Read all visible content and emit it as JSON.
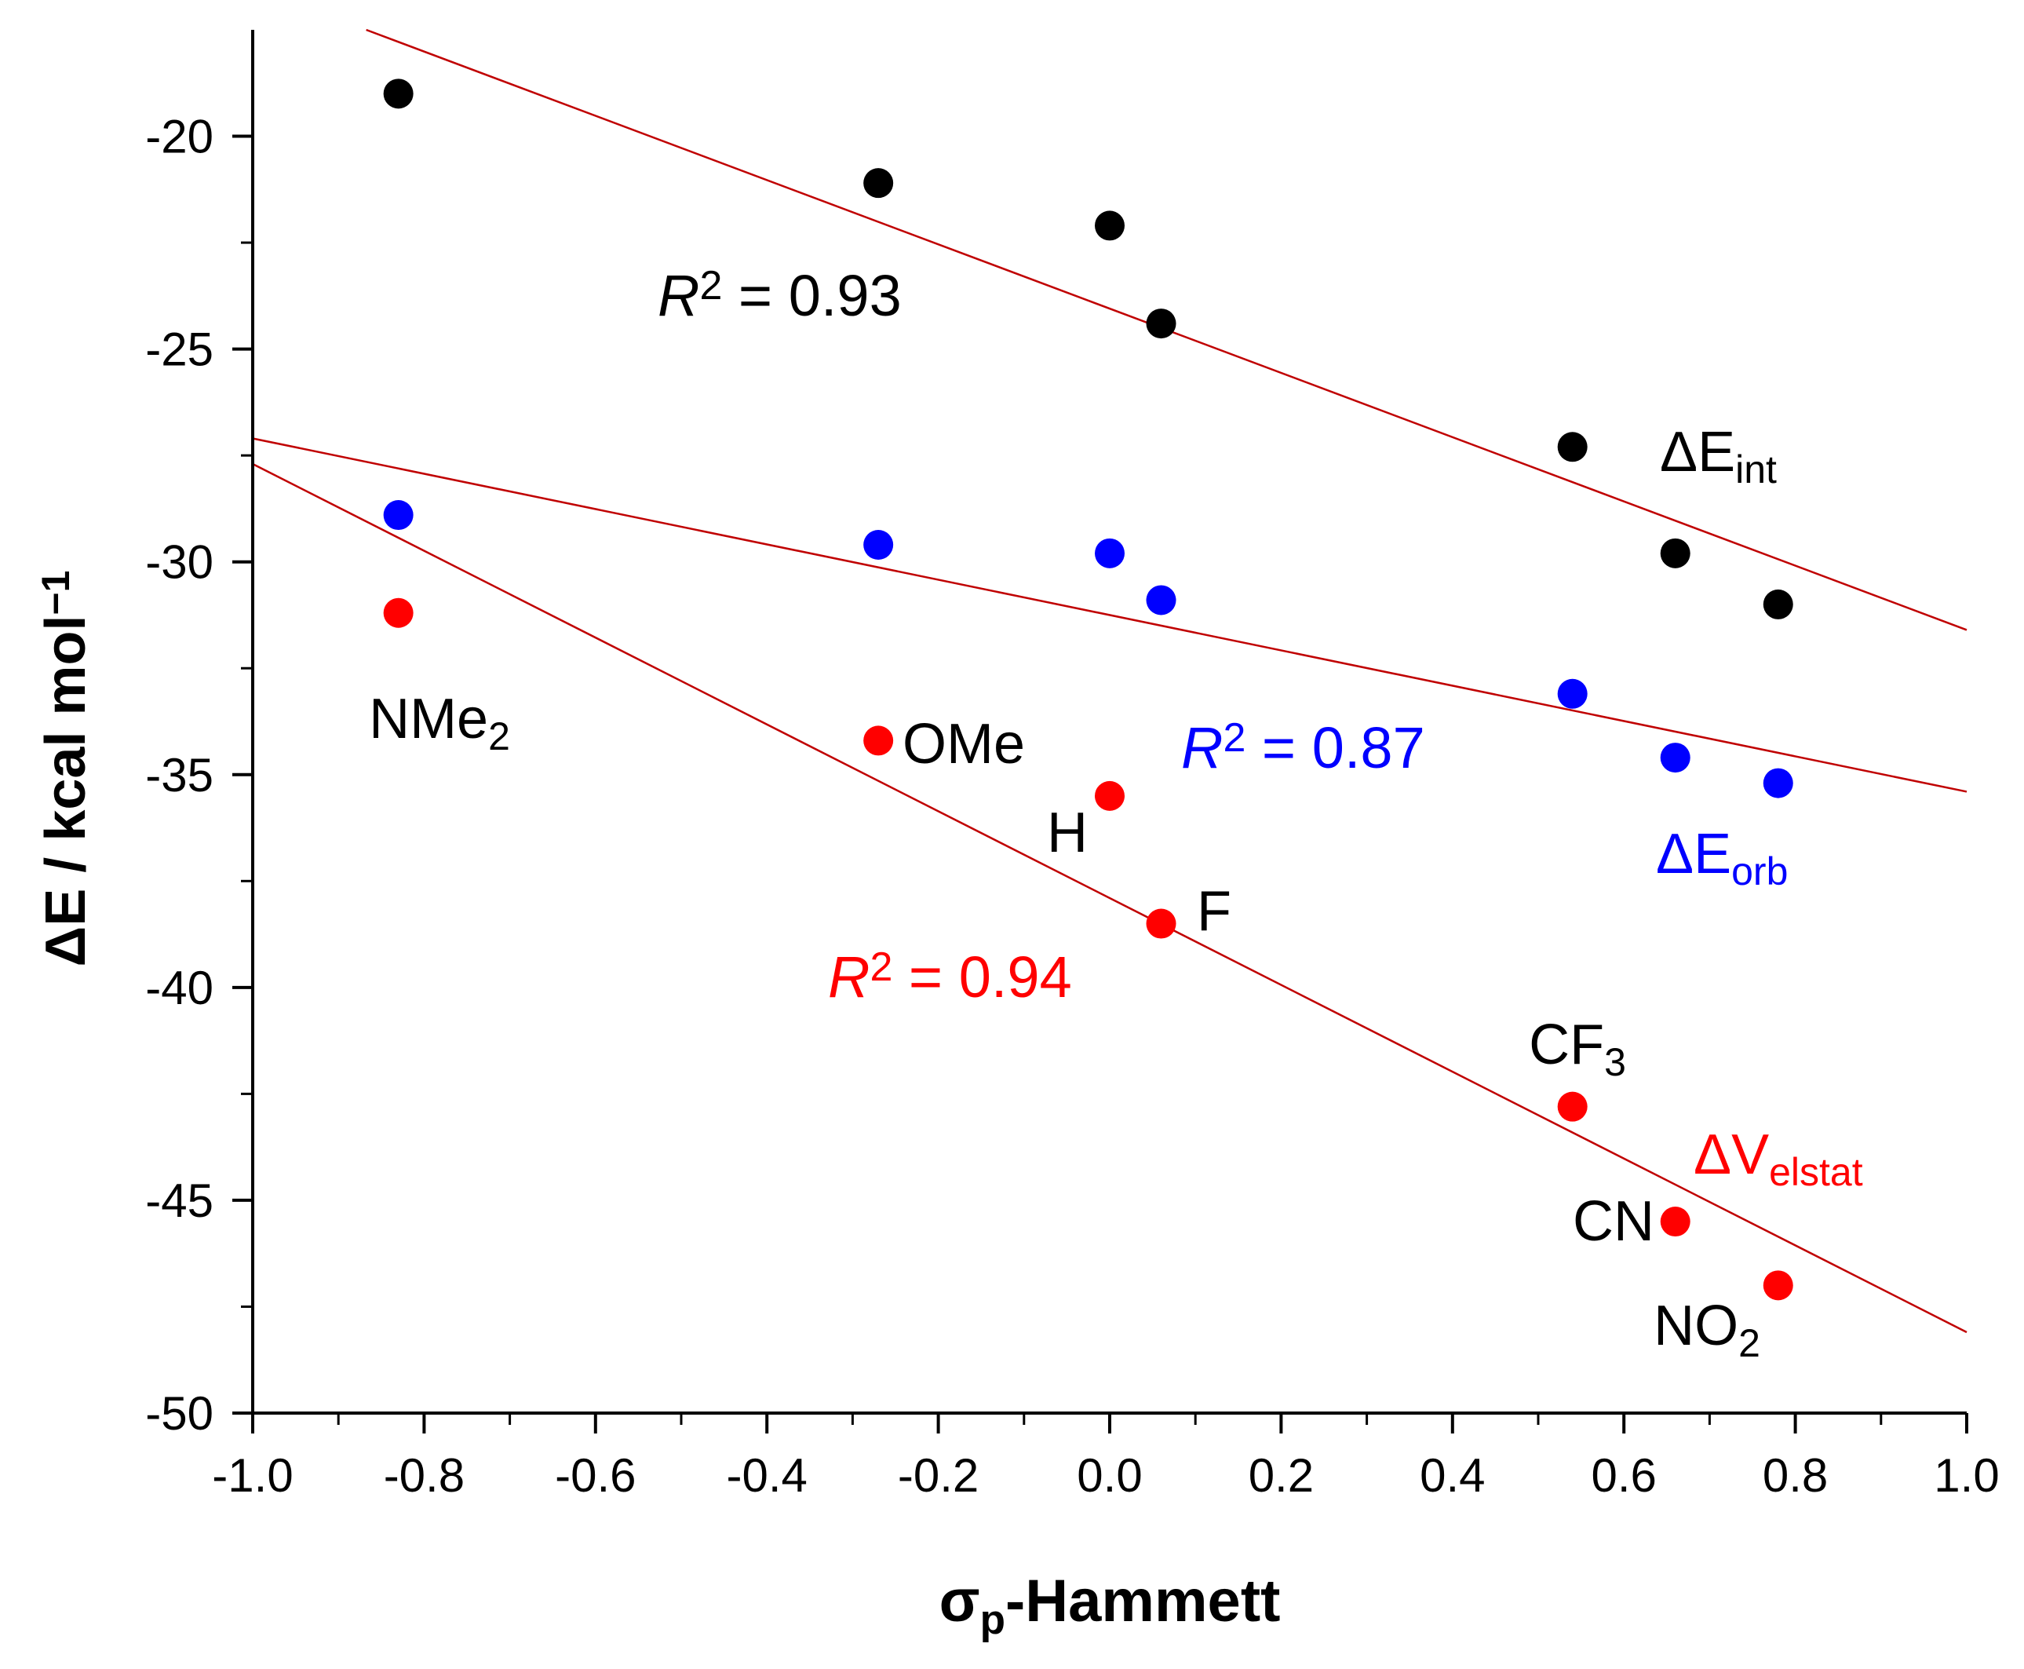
{
  "chart_data": {
    "type": "scatter",
    "xlabel": "σp-Hammett",
    "xlabel_main": "σ",
    "xlabel_sub": "p",
    "xlabel_rest": "-Hammett",
    "ylabel": "ΔE / kcal mol⁻¹",
    "ylabel_main": "ΔE / kcal mol",
    "ylabel_sup": "−1",
    "xlim": [
      -1.0,
      1.0
    ],
    "ylim": [
      -50,
      -17.5
    ],
    "x_major_ticks": [
      -1.0,
      -0.8,
      -0.6,
      -0.4,
      -0.2,
      0.0,
      0.2,
      0.4,
      0.6,
      0.8,
      1.0
    ],
    "x_tick_labels": [
      "-1.0",
      "-0.8",
      "-0.6",
      "-0.4",
      "-0.2",
      "0.0",
      "0.2",
      "0.4",
      "0.6",
      "0.8",
      "1.0"
    ],
    "y_major_ticks": [
      -50,
      -45,
      -40,
      -35,
      -30,
      -25,
      -20
    ],
    "y_tick_labels": [
      "-50",
      "-45",
      "-40",
      "-35",
      "-30",
      "-25",
      "-20"
    ],
    "x": [
      -0.83,
      -0.27,
      0.0,
      0.06,
      0.54,
      0.66,
      0.78
    ],
    "series": [
      {
        "name": "ΔE_int",
        "color": "#000000",
        "values": [
          -19.0,
          -21.1,
          -22.1,
          -24.4,
          -27.3,
          -29.8,
          -31.0
        ],
        "fit": {
          "intercept": -24.05,
          "slope": -7.55,
          "r2_label": "R",
          "r2_sup": "2",
          "r2_text": " = 0.93",
          "color": "#000000"
        },
        "label_main": "ΔE",
        "label_sub": "int",
        "label_color": "#000000"
      },
      {
        "name": "ΔE_orb",
        "color": "#0000ff",
        "values": [
          -28.9,
          -29.6,
          -29.8,
          -30.9,
          -33.1,
          -34.6,
          -35.2
        ],
        "fit": {
          "intercept": -31.25,
          "slope": -4.15,
          "r2_label": "R",
          "r2_sup": "2",
          "r2_text": " = 0.87",
          "color": "#0000ff"
        },
        "label_main": "ΔE",
        "label_sub": "orb",
        "label_color": "#0000ff"
      },
      {
        "name": "ΔV_elstat",
        "color": "#ff0000",
        "values": [
          -31.2,
          -34.2,
          -35.5,
          -38.5,
          -42.8,
          -45.5,
          -47.0
        ],
        "fit": {
          "intercept": -37.9,
          "slope": -10.2,
          "r2_label": "R",
          "r2_sup": "2",
          "r2_text": " = 0.94",
          "color": "#ff0000"
        },
        "label_main": "ΔV",
        "label_sub": "elstat",
        "label_color": "#ff0000"
      }
    ],
    "fit_line_color": "#c00000",
    "point_labels": [
      {
        "main": "NMe",
        "sub": "2"
      },
      {
        "main": "OMe",
        "sub": ""
      },
      {
        "main": "H",
        "sub": ""
      },
      {
        "main": "F",
        "sub": ""
      },
      {
        "main": "CF",
        "sub": "3"
      },
      {
        "main": "CN",
        "sub": ""
      },
      {
        "main": "NO",
        "sub": "2"
      }
    ]
  }
}
